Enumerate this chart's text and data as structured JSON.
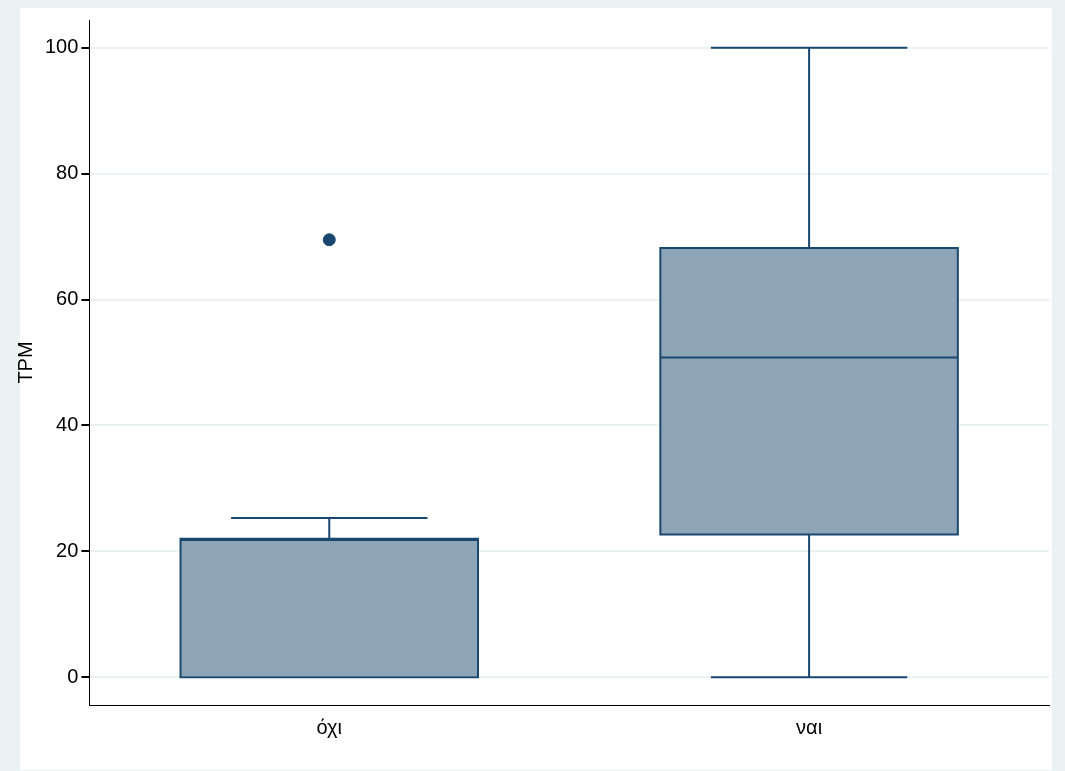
{
  "chart_data": {
    "type": "box",
    "ylabel": "TPM",
    "categories": [
      "όχι",
      "ναι"
    ],
    "boxes": [
      {
        "low": 0,
        "q1": 0,
        "median": 21.8,
        "q3": 22,
        "high": 25.3,
        "outliers": [
          69.5
        ]
      },
      {
        "low": 0,
        "q1": 22.7,
        "median": 50.8,
        "q3": 68.2,
        "high": 100
      }
    ],
    "color": "#8ea4b7",
    "ylim": [
      -4.4,
      104.4
    ],
    "yticks": [
      0,
      20,
      40,
      60,
      80,
      100
    ],
    "grid": "y",
    "legend": false
  }
}
